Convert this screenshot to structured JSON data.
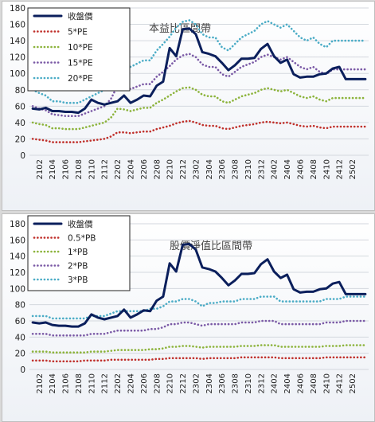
{
  "chart_data": [
    {
      "type": "line",
      "title": "本益比區間帶",
      "ylim": [
        0,
        180
      ],
      "yticks": [
        0,
        20,
        40,
        60,
        80,
        100,
        120,
        140,
        160,
        180
      ],
      "grid": true,
      "legend_placement": "top-left",
      "x": [
        "2101",
        "2102",
        "2103",
        "2104",
        "2105",
        "2106",
        "2107",
        "2108",
        "2109",
        "2110",
        "2111",
        "2112",
        "2201",
        "2202",
        "2203",
        "2204",
        "2205",
        "2206",
        "2207",
        "2208",
        "2209",
        "2210",
        "2211",
        "2212",
        "2301",
        "2302",
        "2303",
        "2304",
        "2305",
        "2306",
        "2307",
        "2308",
        "2309",
        "2310",
        "2311",
        "2312",
        "2401",
        "2402",
        "2403",
        "2404",
        "2405",
        "2406",
        "2407",
        "2408",
        "2409",
        "2410",
        "2411",
        "2412",
        "2501",
        "2502",
        "2503",
        "2504"
      ],
      "xticks": [
        "2102",
        "2104",
        "2106",
        "2108",
        "2110",
        "2112",
        "2202",
        "2204",
        "2206",
        "2208",
        "2210",
        "2212",
        "2302",
        "2304",
        "2306",
        "2308",
        "2310",
        "2312",
        "2402",
        "2404",
        "2406",
        "2408",
        "2410",
        "2412",
        "2502"
      ],
      "series": [
        {
          "name": "收盤價",
          "color": "#0b1f5c",
          "style": "solid",
          "values": [
            57,
            56,
            58,
            54,
            54,
            53,
            53,
            52,
            57,
            68,
            64,
            62,
            64,
            66,
            73,
            64,
            68,
            73,
            72,
            85,
            90,
            131,
            121,
            154,
            155,
            148,
            126,
            124,
            121,
            113,
            104,
            110,
            118,
            118,
            119,
            130,
            136,
            121,
            113,
            117,
            99,
            95,
            96,
            96,
            99,
            100,
            106,
            108,
            93,
            93,
            93,
            93
          ]
        },
        {
          "name": "5*PE",
          "color": "#c0302b",
          "style": "dotted",
          "values": [
            20,
            19,
            18,
            16,
            16,
            16,
            16,
            16,
            17,
            18,
            19,
            20,
            23,
            28,
            28,
            27,
            28,
            29,
            29,
            32,
            34,
            36,
            39,
            41,
            42,
            40,
            37,
            36,
            36,
            33,
            32,
            34,
            36,
            37,
            38,
            40,
            41,
            40,
            39,
            40,
            38,
            36,
            35,
            36,
            34,
            33,
            35,
            35,
            35,
            35,
            35,
            35
          ]
        },
        {
          "name": "10*PE",
          "color": "#8cb33b",
          "style": "dotted",
          "values": [
            40,
            38,
            37,
            33,
            33,
            32,
            32,
            32,
            34,
            36,
            38,
            40,
            46,
            57,
            56,
            54,
            56,
            58,
            58,
            64,
            68,
            73,
            78,
            82,
            83,
            80,
            74,
            72,
            72,
            66,
            64,
            68,
            72,
            74,
            76,
            80,
            82,
            80,
            78,
            80,
            76,
            72,
            70,
            72,
            68,
            66,
            70,
            70,
            70,
            70,
            70,
            70
          ]
        },
        {
          "name": "15*PE",
          "color": "#7b5aa6",
          "style": "dotted",
          "values": [
            60,
            57,
            55,
            50,
            49,
            48,
            48,
            48,
            51,
            54,
            57,
            60,
            69,
            85,
            84,
            81,
            84,
            87,
            87,
            96,
            102,
            109,
            117,
            122,
            124,
            120,
            111,
            108,
            108,
            99,
            96,
            102,
            108,
            111,
            114,
            120,
            123,
            120,
            117,
            120,
            114,
            108,
            105,
            108,
            102,
            99,
            105,
            105,
            105,
            105,
            105,
            105
          ]
        },
        {
          "name": "20*PE",
          "color": "#4bacc6",
          "style": "dotted",
          "values": [
            80,
            76,
            73,
            66,
            66,
            64,
            64,
            64,
            68,
            72,
            76,
            80,
            92,
            114,
            112,
            108,
            112,
            116,
            116,
            128,
            136,
            145,
            156,
            163,
            165,
            160,
            148,
            144,
            144,
            132,
            128,
            136,
            144,
            148,
            152,
            160,
            164,
            160,
            156,
            160,
            152,
            144,
            140,
            144,
            136,
            132,
            140,
            140,
            140,
            140,
            140,
            140
          ]
        }
      ]
    },
    {
      "type": "line",
      "title": "股價淨值比區間帶",
      "ylim": [
        0,
        180
      ],
      "yticks": [
        0,
        20,
        40,
        60,
        80,
        100,
        120,
        140,
        160,
        180
      ],
      "grid": true,
      "legend_placement": "top-left",
      "x": [
        "2101",
        "2102",
        "2103",
        "2104",
        "2105",
        "2106",
        "2107",
        "2108",
        "2109",
        "2110",
        "2111",
        "2112",
        "2201",
        "2202",
        "2203",
        "2204",
        "2205",
        "2206",
        "2207",
        "2208",
        "2209",
        "2210",
        "2211",
        "2212",
        "2301",
        "2302",
        "2303",
        "2304",
        "2305",
        "2306",
        "2307",
        "2308",
        "2309",
        "2310",
        "2311",
        "2312",
        "2401",
        "2402",
        "2403",
        "2404",
        "2405",
        "2406",
        "2407",
        "2408",
        "2409",
        "2410",
        "2411",
        "2412",
        "2501",
        "2502",
        "2503",
        "2504"
      ],
      "xticks": [
        "2102",
        "2104",
        "2106",
        "2108",
        "2110",
        "2112",
        "2202",
        "2204",
        "2206",
        "2208",
        "2210",
        "2212",
        "2302",
        "2304",
        "2306",
        "2308",
        "2310",
        "2312",
        "2402",
        "2404",
        "2406",
        "2408",
        "2410",
        "2412",
        "2502"
      ],
      "series": [
        {
          "name": "收盤價",
          "color": "#0b1f5c",
          "style": "solid",
          "values": [
            58,
            57,
            58,
            55,
            54,
            54,
            53,
            53,
            57,
            68,
            64,
            62,
            64,
            66,
            74,
            64,
            68,
            73,
            72,
            85,
            90,
            131,
            121,
            154,
            155,
            148,
            126,
            124,
            121,
            113,
            104,
            110,
            118,
            118,
            119,
            130,
            136,
            121,
            113,
            117,
            99,
            95,
            96,
            96,
            99,
            100,
            106,
            108,
            93,
            93,
            93,
            93
          ]
        },
        {
          "name": "0.5*PB",
          "color": "#c0302b",
          "style": "dotted",
          "values": [
            11,
            11,
            11,
            10,
            10,
            10,
            10,
            10,
            11,
            11,
            11,
            11,
            12,
            12,
            12,
            12,
            12,
            12,
            12,
            13,
            13,
            14,
            14,
            14,
            14,
            14,
            13,
            14,
            14,
            14,
            14,
            14,
            15,
            15,
            15,
            15,
            15,
            15,
            14,
            14,
            14,
            14,
            14,
            14,
            14,
            15,
            15,
            15,
            15,
            15,
            15,
            15
          ]
        },
        {
          "name": "1*PB",
          "color": "#8cb33b",
          "style": "dotted",
          "values": [
            22,
            22,
            22,
            21,
            21,
            21,
            21,
            21,
            21,
            22,
            22,
            22,
            23,
            24,
            24,
            24,
            24,
            24,
            25,
            25,
            26,
            28,
            28,
            29,
            29,
            28,
            27,
            28,
            28,
            28,
            28,
            28,
            29,
            29,
            29,
            30,
            30,
            30,
            28,
            28,
            28,
            28,
            28,
            28,
            28,
            29,
            29,
            29,
            30,
            30,
            30,
            30
          ]
        },
        {
          "name": "2*PB",
          "color": "#7b5aa6",
          "style": "dotted",
          "values": [
            44,
            44,
            44,
            42,
            42,
            42,
            42,
            42,
            42,
            44,
            44,
            44,
            46,
            48,
            48,
            48,
            48,
            48,
            50,
            50,
            52,
            56,
            56,
            58,
            58,
            56,
            54,
            56,
            56,
            56,
            56,
            56,
            58,
            58,
            58,
            60,
            60,
            60,
            56,
            56,
            56,
            56,
            56,
            56,
            56,
            58,
            58,
            58,
            60,
            60,
            60,
            60
          ]
        },
        {
          "name": "3*PB",
          "color": "#4bacc6",
          "style": "dotted",
          "values": [
            66,
            66,
            66,
            63,
            63,
            63,
            63,
            63,
            63,
            66,
            66,
            66,
            69,
            72,
            72,
            72,
            72,
            72,
            75,
            75,
            78,
            84,
            84,
            87,
            87,
            84,
            78,
            82,
            82,
            84,
            84,
            84,
            87,
            87,
            87,
            90,
            90,
            90,
            84,
            84,
            84,
            84,
            84,
            84,
            84,
            87,
            87,
            87,
            90,
            90,
            90,
            90
          ]
        }
      ]
    }
  ]
}
